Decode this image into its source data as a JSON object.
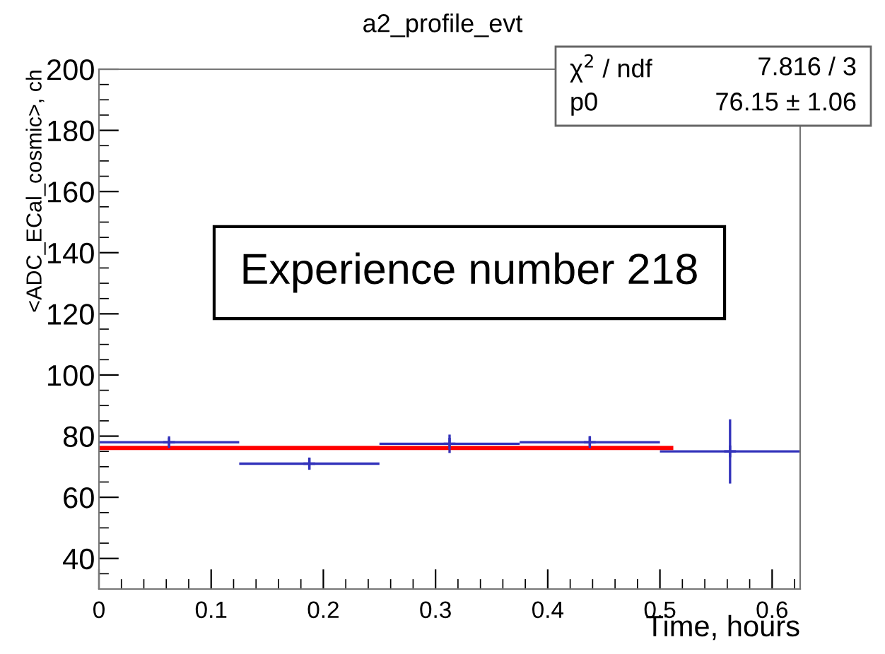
{
  "chart_data": {
    "type": "scatter",
    "title": "a2_profile_evt",
    "xlabel": "Time, hours",
    "ylabel": "<ADC_ECal_cosmic>, ch",
    "x": [
      0.0625,
      0.1875,
      0.3125,
      0.4375,
      0.5625
    ],
    "series": [
      {
        "color": "#3333bb",
        "marker": "cross",
        "values": [
          78,
          71,
          77.5,
          78,
          75
        ],
        "errors": [
          1.5,
          2,
          3,
          2,
          10.5
        ],
        "xerrors": [
          0.0625,
          0.0625,
          0.0625,
          0.0625,
          0.0625
        ]
      },
      {
        "type": "line",
        "color": "#ff0000",
        "x": [
          0,
          0.51
        ],
        "values": [
          76.15,
          76.15
        ]
      }
    ],
    "marker": "none",
    "xlim": [
      0,
      0.625
    ],
    "xticks": [
      0,
      0.1,
      0.2,
      0.3,
      0.4,
      0.5,
      0.6
    ],
    "ylim": [
      30,
      200
    ],
    "yticks": [
      40,
      60,
      80,
      100,
      120,
      140,
      160,
      180,
      200
    ],
    "grid": false,
    "annotations": [
      "χ$^{2}$ / ndf",
      "7.816 / 3",
      "p0",
      "76.15 ± 1.06",
      "Experience number 218"
    ]
  }
}
